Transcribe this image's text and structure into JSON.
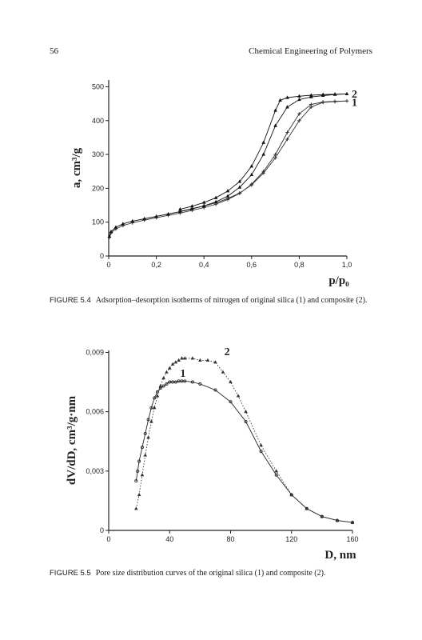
{
  "header": {
    "page_number": "56",
    "running_title": "Chemical Engineering of Polymers"
  },
  "figures": [
    {
      "label": "FIGURE 5.4",
      "caption": "Adsorption–desorption isotherms of nitrogen of original silica (1) and composite (2)."
    },
    {
      "label": "FIGURE 5.5",
      "caption": "Pore size distribution curves of the original silica (1) and composite (2)."
    }
  ],
  "chart_data": [
    {
      "type": "line",
      "xlabel": "p/p₀",
      "ylabel": "a, cm³/g",
      "xlim": [
        0,
        1.0
      ],
      "ylim": [
        0,
        520
      ],
      "xticks": [
        "0",
        "0,2",
        "0,4",
        "0,6",
        "0,8",
        "1,0"
      ],
      "xtick_values": [
        0,
        0.2,
        0.4,
        0.6,
        0.8,
        1.0
      ],
      "yticks": [
        "0",
        "100",
        "200",
        "300",
        "400",
        "500"
      ],
      "ytick_values": [
        0,
        100,
        200,
        300,
        400,
        500
      ],
      "grid": false,
      "series": [
        {
          "name": "1",
          "label_at": [
            1.0,
            455
          ],
          "color": "#333333",
          "marker": "plus",
          "x": [
            0.003,
            0.01,
            0.03,
            0.06,
            0.1,
            0.15,
            0.2,
            0.25,
            0.3,
            0.35,
            0.4,
            0.45,
            0.5,
            0.55,
            0.6,
            0.65,
            0.7,
            0.75,
            0.8,
            0.85,
            0.9,
            0.95,
            1.0,
            0.95,
            0.9,
            0.85,
            0.8,
            0.75,
            0.7,
            0.65,
            0.6,
            0.55,
            0.5,
            0.45,
            0.4,
            0.35,
            0.3
          ],
          "y": [
            55,
            68,
            80,
            90,
            98,
            106,
            113,
            120,
            127,
            135,
            143,
            153,
            167,
            185,
            212,
            250,
            300,
            365,
            420,
            448,
            455,
            457,
            458,
            456,
            454,
            440,
            400,
            345,
            290,
            245,
            210,
            186,
            170,
            157,
            148,
            140,
            132
          ]
        },
        {
          "name": "2",
          "label_at": [
            1.0,
            480
          ],
          "color": "#111111",
          "marker": "triangle",
          "x": [
            0.003,
            0.01,
            0.03,
            0.06,
            0.1,
            0.15,
            0.2,
            0.25,
            0.3,
            0.35,
            0.4,
            0.45,
            0.5,
            0.55,
            0.6,
            0.65,
            0.7,
            0.75,
            0.8,
            0.85,
            0.9,
            0.95,
            1.0,
            0.95,
            0.9,
            0.85,
            0.8,
            0.75,
            0.72,
            0.7,
            0.65,
            0.6,
            0.55,
            0.5,
            0.45,
            0.4,
            0.35,
            0.3
          ],
          "y": [
            58,
            72,
            85,
            95,
            103,
            110,
            117,
            124,
            131,
            139,
            148,
            160,
            177,
            203,
            240,
            300,
            385,
            440,
            462,
            470,
            474,
            477,
            479,
            478,
            477,
            475,
            472,
            468,
            460,
            430,
            335,
            265,
            220,
            192,
            172,
            158,
            147,
            138
          ]
        }
      ]
    },
    {
      "type": "line",
      "xlabel": "D, nm",
      "ylabel": "dV/dD, cm³/g·nm",
      "xlim": [
        0,
        160
      ],
      "ylim": [
        0,
        0.0091
      ],
      "xticks": [
        "0",
        "40",
        "80",
        "120",
        "160"
      ],
      "xtick_values": [
        0,
        40,
        80,
        120,
        160
      ],
      "yticks": [
        "0",
        "0,003",
        "0,006",
        "0,009"
      ],
      "ytick_values": [
        0,
        0.003,
        0.006,
        0.009
      ],
      "grid": false,
      "series": [
        {
          "name": "1",
          "label_at": [
            50,
            0.0076
          ],
          "color": "#222222",
          "style": "solid",
          "x": [
            18,
            19,
            20,
            22,
            24,
            26,
            28,
            30,
            32,
            34,
            36,
            38,
            40,
            42,
            44,
            46,
            48,
            50,
            55,
            60,
            70,
            80,
            90,
            100,
            110,
            120,
            130,
            140,
            150,
            160
          ],
          "y": [
            0.0025,
            0.003,
            0.0035,
            0.0042,
            0.0049,
            0.0056,
            0.0062,
            0.0067,
            0.007,
            0.0072,
            0.0073,
            0.0074,
            0.0075,
            0.0075,
            0.0075,
            0.00755,
            0.00755,
            0.00755,
            0.0075,
            0.0074,
            0.0071,
            0.0065,
            0.0055,
            0.004,
            0.0028,
            0.0018,
            0.0011,
            0.0007,
            0.0005,
            0.0004
          ]
        },
        {
          "name": "2",
          "label_at": [
            79,
            0.0087
          ],
          "color": "#333333",
          "style": "dotted",
          "x": [
            18,
            20,
            22,
            24,
            26,
            28,
            30,
            32,
            34,
            36,
            38,
            40,
            42,
            44,
            46,
            48,
            50,
            55,
            60,
            65,
            70,
            75,
            80,
            85,
            90,
            100,
            110,
            120,
            130,
            140,
            150,
            160
          ],
          "y": [
            0.0011,
            0.0018,
            0.0028,
            0.0038,
            0.0047,
            0.0055,
            0.0062,
            0.0068,
            0.0073,
            0.0077,
            0.008,
            0.0082,
            0.0084,
            0.0085,
            0.0086,
            0.0087,
            0.0087,
            0.0087,
            0.0086,
            0.0086,
            0.0085,
            0.008,
            0.0075,
            0.0068,
            0.006,
            0.0043,
            0.003,
            0.0018,
            0.0011,
            0.0007,
            0.0005,
            0.0004
          ]
        }
      ]
    }
  ]
}
